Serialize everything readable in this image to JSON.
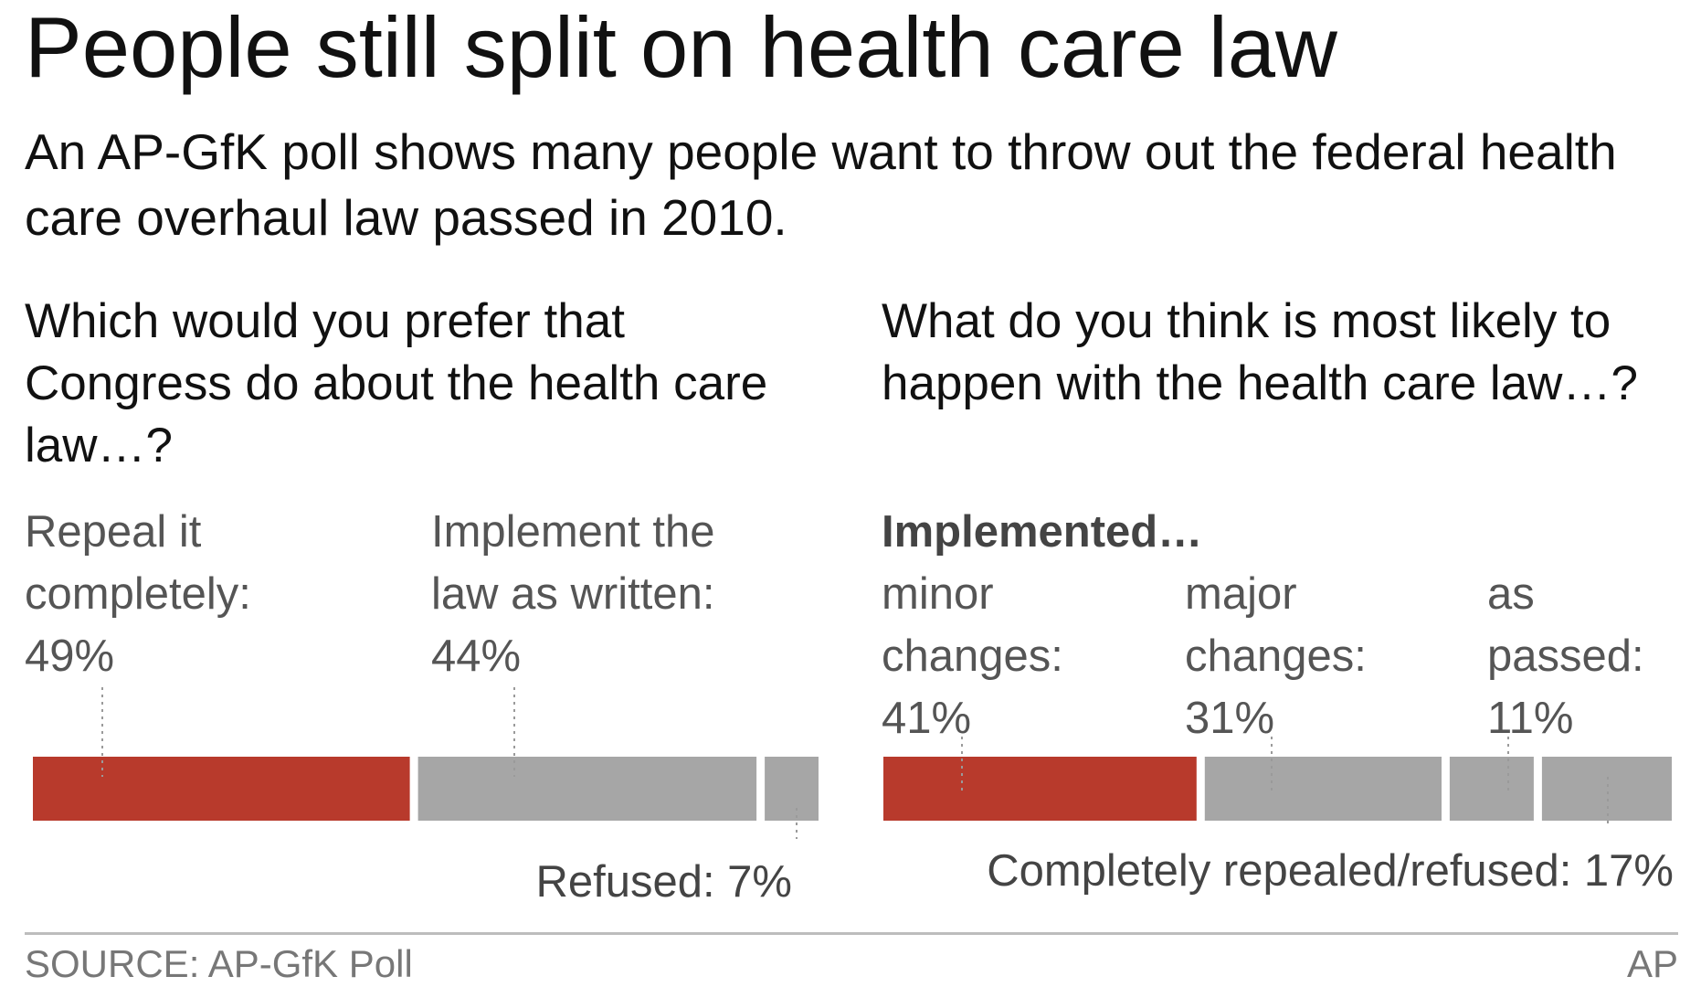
{
  "title": "People still split on health care law",
  "subtitle": "An AP-GfK poll shows many people want to throw out the federal health care overhaul law passed in 2010.",
  "colors": {
    "highlight": "#b83a2c",
    "neutral": "#a6a6a6",
    "leader": "#9a9a9a"
  },
  "chart_data": [
    {
      "type": "bar",
      "orientation": "horizontal-stacked",
      "title": "Which would you prefer that Congress do about the health care law…?",
      "unit": "%",
      "segments": [
        {
          "name": "Repeal it completely",
          "label": "Repeal it\ncompletely:\n49%",
          "value": 49,
          "color": "#b83a2c"
        },
        {
          "name": "Implement the law as written",
          "label": "Implement the\nlaw as written:\n44%",
          "value": 44,
          "color": "#a6a6a6"
        },
        {
          "name": "Refused",
          "label": "Refused: 7%",
          "value": 7,
          "color": "#a6a6a6"
        }
      ]
    },
    {
      "type": "bar",
      "orientation": "horizontal-stacked",
      "title": "What do you think is most likely to happen with the health care law…?",
      "group_label": "Implemented…",
      "unit": "%",
      "segments": [
        {
          "name": "minor changes",
          "label": "minor\nchanges:\n41%",
          "value": 41,
          "color": "#b83a2c"
        },
        {
          "name": "major changes",
          "label": "major\nchanges:\n31%",
          "value": 31,
          "color": "#a6a6a6"
        },
        {
          "name": "as passed",
          "label": "as\npassed:\n11%",
          "value": 11,
          "color": "#a6a6a6"
        },
        {
          "name": "Completely repealed/refused",
          "label": "Completely repealed/refused: 17%",
          "value": 17,
          "color": "#a6a6a6"
        }
      ]
    }
  ],
  "footer": {
    "source": "SOURCE: AP-GfK Poll",
    "credit": "AP"
  }
}
